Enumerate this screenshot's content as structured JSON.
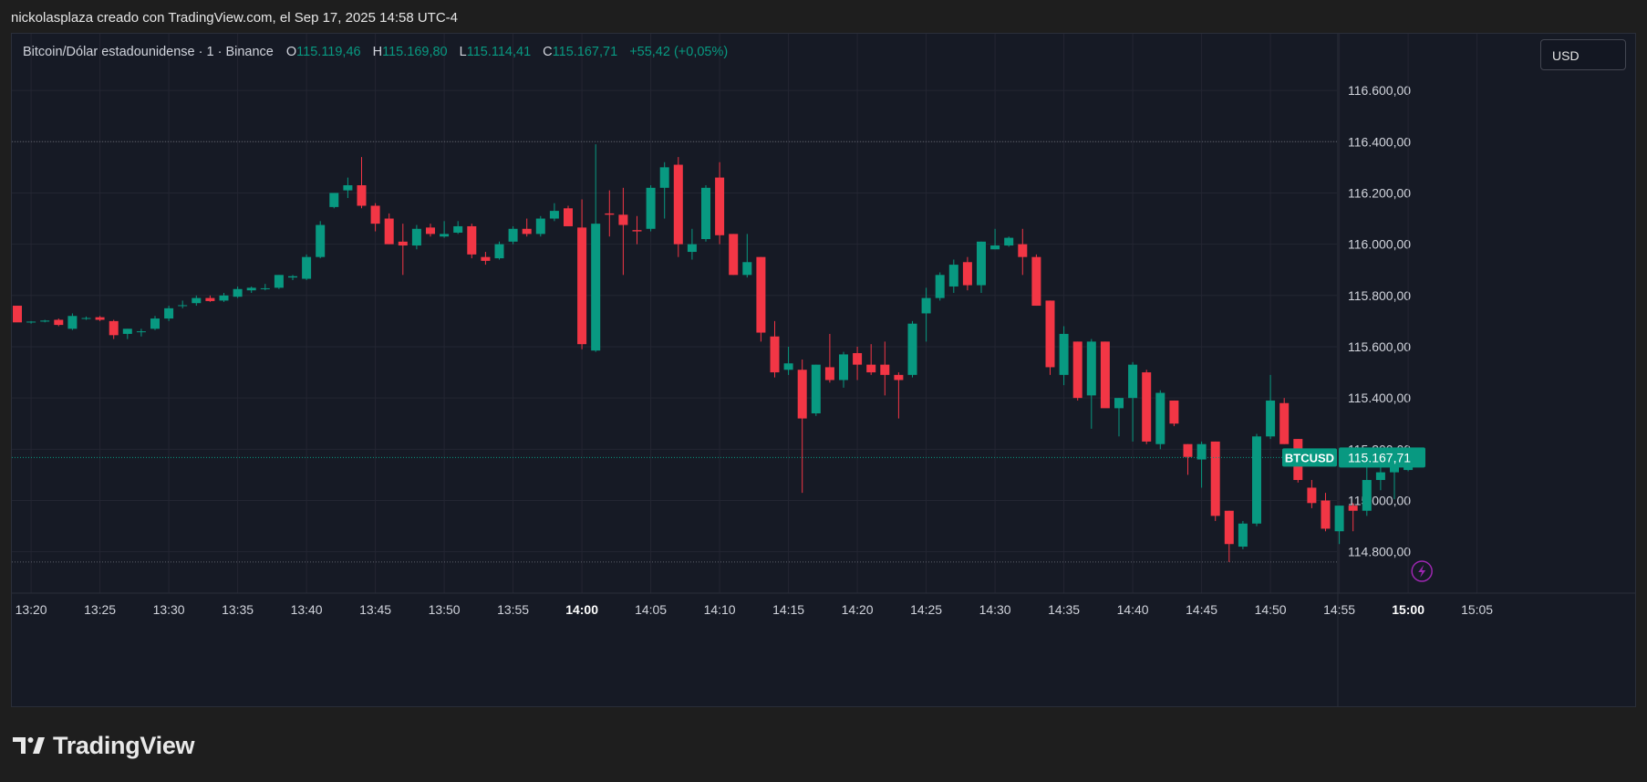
{
  "caption": "nickolasplaza creado con TradingView.com, el Sep 17, 2025 14:58 UTC-4",
  "legend": {
    "symbol": "Bitcoin/Dólar estadounidense · 1 · Binance",
    "open_label": "O",
    "open": "115.119,46",
    "high_label": "H",
    "high": "115.169,80",
    "low_label": "L",
    "low": "115.114,41",
    "close_label": "C",
    "close": "115.167,71",
    "change": "+55,42 (+0,05%)"
  },
  "currency_button": "USD",
  "brand": {
    "name": "TradingView",
    "logo_icon": "tradingview-logo-icon"
  },
  "colors": {
    "up": "#089981",
    "down": "#f23645",
    "background": "#161a25",
    "grid": "#232632",
    "axis_text": "#d1d4dc"
  },
  "chart_data": {
    "type": "candlestick",
    "title": "Bitcoin/Dólar estadounidense · 1 · Binance",
    "interval_minutes": 1,
    "x_tick_labels": [
      "13:20",
      "13:25",
      "13:30",
      "13:35",
      "13:40",
      "13:45",
      "13:50",
      "13:55",
      "14:00",
      "14:05",
      "14:10",
      "14:15",
      "14:20",
      "14:25",
      "14:30",
      "14:35",
      "14:40",
      "14:45",
      "14:50",
      "14:55",
      "15:00",
      "15:05"
    ],
    "x_bold_ticks": [
      "14:00",
      "15:00"
    ],
    "y_tick_labels": [
      "116.600,00",
      "116.400,00",
      "116.200,00",
      "116.000,00",
      "115.800,00",
      "115.600,00",
      "115.400,00",
      "115.200,00",
      "115.000,00",
      "114.800,00"
    ],
    "y_ticks": [
      116600,
      116400,
      116200,
      116000,
      115800,
      115600,
      115400,
      115200,
      115000,
      114800
    ],
    "ylim": [
      114660,
      116700
    ],
    "x_start_time": "13:20",
    "x_start_minutes": 1,
    "x_end_minutes": 110,
    "hlines": [
      116400,
      114760
    ],
    "last_price": {
      "label": "BTCUSD",
      "value": 115167.71,
      "text": "115.167,71"
    },
    "candles": [
      {
        "t": "13:19",
        "o": 115760,
        "h": 115760,
        "l": 115700,
        "c": 115695
      },
      {
        "t": "13:20",
        "o": 115695,
        "h": 115700,
        "l": 115690,
        "c": 115698
      },
      {
        "t": "13:21",
        "o": 115698,
        "h": 115705,
        "l": 115695,
        "c": 115702
      },
      {
        "t": "13:22",
        "o": 115705,
        "h": 115710,
        "l": 115680,
        "c": 115685
      },
      {
        "t": "13:23",
        "o": 115670,
        "h": 115730,
        "l": 115665,
        "c": 115720
      },
      {
        "t": "13:24",
        "o": 115710,
        "h": 115718,
        "l": 115705,
        "c": 115712
      },
      {
        "t": "13:25",
        "o": 115715,
        "h": 115720,
        "l": 115700,
        "c": 115705
      },
      {
        "t": "13:26",
        "o": 115700,
        "h": 115705,
        "l": 115630,
        "c": 115645
      },
      {
        "t": "13:27",
        "o": 115650,
        "h": 115670,
        "l": 115630,
        "c": 115670
      },
      {
        "t": "13:28",
        "o": 115660,
        "h": 115670,
        "l": 115640,
        "c": 115660
      },
      {
        "t": "13:29",
        "o": 115670,
        "h": 115720,
        "l": 115665,
        "c": 115710
      },
      {
        "t": "13:30",
        "o": 115710,
        "h": 115760,
        "l": 115700,
        "c": 115750
      },
      {
        "t": "13:31",
        "o": 115760,
        "h": 115780,
        "l": 115750,
        "c": 115762
      },
      {
        "t": "13:32",
        "o": 115770,
        "h": 115800,
        "l": 115760,
        "c": 115790
      },
      {
        "t": "13:33",
        "o": 115790,
        "h": 115800,
        "l": 115775,
        "c": 115778
      },
      {
        "t": "13:34",
        "o": 115780,
        "h": 115810,
        "l": 115775,
        "c": 115800
      },
      {
        "t": "13:35",
        "o": 115795,
        "h": 115835,
        "l": 115790,
        "c": 115825
      },
      {
        "t": "13:36",
        "o": 115820,
        "h": 115835,
        "l": 115810,
        "c": 115830
      },
      {
        "t": "13:37",
        "o": 115825,
        "h": 115845,
        "l": 115820,
        "c": 115828
      },
      {
        "t": "13:38",
        "o": 115830,
        "h": 115880,
        "l": 115825,
        "c": 115880
      },
      {
        "t": "13:39",
        "o": 115870,
        "h": 115880,
        "l": 115860,
        "c": 115875
      },
      {
        "t": "13:40",
        "o": 115865,
        "h": 115960,
        "l": 115860,
        "c": 115950
      },
      {
        "t": "13:41",
        "o": 115950,
        "h": 116090,
        "l": 115945,
        "c": 116075
      },
      {
        "t": "13:42",
        "o": 116145,
        "h": 116200,
        "l": 116140,
        "c": 116200
      },
      {
        "t": "13:43",
        "o": 116210,
        "h": 116260,
        "l": 116180,
        "c": 116230
      },
      {
        "t": "13:44",
        "o": 116230,
        "h": 116340,
        "l": 116140,
        "c": 116150
      },
      {
        "t": "13:45",
        "o": 116150,
        "h": 116160,
        "l": 116050,
        "c": 116080
      },
      {
        "t": "13:46",
        "o": 116100,
        "h": 116120,
        "l": 116000,
        "c": 116000
      },
      {
        "t": "13:47",
        "o": 116010,
        "h": 116080,
        "l": 115880,
        "c": 115995
      },
      {
        "t": "13:48",
        "o": 115995,
        "h": 116075,
        "l": 115980,
        "c": 116060
      },
      {
        "t": "13:49",
        "o": 116065,
        "h": 116080,
        "l": 116030,
        "c": 116040
      },
      {
        "t": "13:50",
        "o": 116030,
        "h": 116090,
        "l": 116025,
        "c": 116040
      },
      {
        "t": "13:51",
        "o": 116045,
        "h": 116090,
        "l": 116040,
        "c": 116070
      },
      {
        "t": "13:52",
        "o": 116070,
        "h": 116080,
        "l": 115945,
        "c": 115960
      },
      {
        "t": "13:53",
        "o": 115950,
        "h": 115970,
        "l": 115920,
        "c": 115935
      },
      {
        "t": "13:54",
        "o": 115945,
        "h": 116010,
        "l": 115940,
        "c": 116000
      },
      {
        "t": "13:55",
        "o": 116010,
        "h": 116070,
        "l": 116000,
        "c": 116060
      },
      {
        "t": "13:56",
        "o": 116060,
        "h": 116100,
        "l": 116030,
        "c": 116040
      },
      {
        "t": "13:57",
        "o": 116040,
        "h": 116110,
        "l": 116030,
        "c": 116100
      },
      {
        "t": "13:58",
        "o": 116100,
        "h": 116160,
        "l": 116090,
        "c": 116130
      },
      {
        "t": "13:59",
        "o": 116140,
        "h": 116150,
        "l": 116070,
        "c": 116070
      },
      {
        "t": "14:00",
        "o": 116065,
        "h": 116175,
        "l": 115590,
        "c": 115610
      },
      {
        "t": "14:01",
        "o": 115585,
        "h": 116390,
        "l": 115580,
        "c": 116080
      },
      {
        "t": "14:02",
        "o": 116120,
        "h": 116210,
        "l": 116030,
        "c": 116115
      },
      {
        "t": "14:03",
        "o": 116115,
        "h": 116220,
        "l": 115880,
        "c": 116075
      },
      {
        "t": "14:04",
        "o": 116055,
        "h": 116110,
        "l": 116000,
        "c": 116050
      },
      {
        "t": "14:05",
        "o": 116060,
        "h": 116230,
        "l": 116050,
        "c": 116220
      },
      {
        "t": "14:06",
        "o": 116220,
        "h": 116320,
        "l": 116100,
        "c": 116300
      },
      {
        "t": "14:07",
        "o": 116310,
        "h": 116340,
        "l": 115950,
        "c": 116000
      },
      {
        "t": "14:08",
        "o": 115970,
        "h": 116060,
        "l": 115940,
        "c": 116000
      },
      {
        "t": "14:09",
        "o": 116020,
        "h": 116230,
        "l": 116010,
        "c": 116220
      },
      {
        "t": "14:10",
        "o": 116260,
        "h": 116320,
        "l": 116000,
        "c": 116035
      },
      {
        "t": "14:11",
        "o": 116040,
        "h": 116040,
        "l": 115880,
        "c": 115880
      },
      {
        "t": "14:12",
        "o": 115880,
        "h": 116040,
        "l": 115870,
        "c": 115930
      },
      {
        "t": "14:13",
        "o": 115950,
        "h": 115950,
        "l": 115620,
        "c": 115655
      },
      {
        "t": "14:14",
        "o": 115640,
        "h": 115700,
        "l": 115480,
        "c": 115500
      },
      {
        "t": "14:15",
        "o": 115510,
        "h": 115600,
        "l": 115490,
        "c": 115535
      },
      {
        "t": "14:16",
        "o": 115510,
        "h": 115550,
        "l": 115030,
        "c": 115320
      },
      {
        "t": "14:17",
        "o": 115340,
        "h": 115530,
        "l": 115330,
        "c": 115530
      },
      {
        "t": "14:18",
        "o": 115520,
        "h": 115650,
        "l": 115460,
        "c": 115470
      },
      {
        "t": "14:19",
        "o": 115470,
        "h": 115580,
        "l": 115440,
        "c": 115570
      },
      {
        "t": "14:20",
        "o": 115575,
        "h": 115600,
        "l": 115470,
        "c": 115530
      },
      {
        "t": "14:21",
        "o": 115530,
        "h": 115610,
        "l": 115490,
        "c": 115500
      },
      {
        "t": "14:22",
        "o": 115530,
        "h": 115620,
        "l": 115410,
        "c": 115490
      },
      {
        "t": "14:23",
        "o": 115490,
        "h": 115500,
        "l": 115320,
        "c": 115470
      },
      {
        "t": "14:24",
        "o": 115490,
        "h": 115700,
        "l": 115480,
        "c": 115690
      },
      {
        "t": "14:25",
        "o": 115730,
        "h": 115830,
        "l": 115620,
        "c": 115790
      },
      {
        "t": "14:26",
        "o": 115790,
        "h": 115890,
        "l": 115780,
        "c": 115880
      },
      {
        "t": "14:27",
        "o": 115835,
        "h": 115940,
        "l": 115810,
        "c": 115920
      },
      {
        "t": "14:28",
        "o": 115930,
        "h": 115950,
        "l": 115820,
        "c": 115840
      },
      {
        "t": "14:29",
        "o": 115840,
        "h": 116010,
        "l": 115810,
        "c": 116010
      },
      {
        "t": "14:30",
        "o": 115980,
        "h": 116060,
        "l": 115980,
        "c": 115995
      },
      {
        "t": "14:31",
        "o": 115995,
        "h": 116030,
        "l": 115990,
        "c": 116025
      },
      {
        "t": "14:32",
        "o": 116000,
        "h": 116060,
        "l": 115880,
        "c": 115950
      },
      {
        "t": "14:33",
        "o": 115950,
        "h": 115960,
        "l": 115760,
        "c": 115760
      },
      {
        "t": "14:34",
        "o": 115780,
        "h": 115780,
        "l": 115490,
        "c": 115520
      },
      {
        "t": "14:35",
        "o": 115490,
        "h": 115680,
        "l": 115450,
        "c": 115650
      },
      {
        "t": "14:36",
        "o": 115620,
        "h": 115620,
        "l": 115390,
        "c": 115400
      },
      {
        "t": "14:37",
        "o": 115410,
        "h": 115630,
        "l": 115280,
        "c": 115620
      },
      {
        "t": "14:38",
        "o": 115620,
        "h": 115620,
        "l": 115370,
        "c": 115360
      },
      {
        "t": "14:39",
        "o": 115360,
        "h": 115400,
        "l": 115250,
        "c": 115400
      },
      {
        "t": "14:40",
        "o": 115400,
        "h": 115540,
        "l": 115230,
        "c": 115530
      },
      {
        "t": "14:41",
        "o": 115500,
        "h": 115510,
        "l": 115220,
        "c": 115230
      },
      {
        "t": "14:42",
        "o": 115220,
        "h": 115430,
        "l": 115200,
        "c": 115420
      },
      {
        "t": "14:43",
        "o": 115390,
        "h": 115390,
        "l": 115290,
        "c": 115300
      },
      {
        "t": "14:44",
        "o": 115220,
        "h": 115220,
        "l": 115100,
        "c": 115170
      },
      {
        "t": "14:45",
        "o": 115160,
        "h": 115230,
        "l": 115050,
        "c": 115220
      },
      {
        "t": "14:46",
        "o": 115230,
        "h": 115230,
        "l": 114920,
        "c": 114940
      },
      {
        "t": "14:47",
        "o": 114960,
        "h": 114960,
        "l": 114760,
        "c": 114830
      },
      {
        "t": "14:48",
        "o": 114820,
        "h": 114920,
        "l": 114810,
        "c": 114910
      },
      {
        "t": "14:49",
        "o": 114910,
        "h": 115260,
        "l": 114900,
        "c": 115250
      },
      {
        "t": "14:50",
        "o": 115250,
        "h": 115490,
        "l": 115240,
        "c": 115390
      },
      {
        "t": "14:51",
        "o": 115380,
        "h": 115400,
        "l": 115220,
        "c": 115220
      },
      {
        "t": "14:52",
        "o": 115240,
        "h": 115240,
        "l": 115070,
        "c": 115080
      },
      {
        "t": "14:53",
        "o": 115050,
        "h": 115080,
        "l": 114970,
        "c": 114990
      },
      {
        "t": "14:54",
        "o": 115000,
        "h": 115030,
        "l": 114880,
        "c": 114890
      },
      {
        "t": "14:55",
        "o": 114880,
        "h": 114980,
        "l": 114830,
        "c": 114980
      },
      {
        "t": "14:56",
        "o": 114980,
        "h": 114990,
        "l": 114880,
        "c": 114960
      },
      {
        "t": "14:57",
        "o": 114960,
        "h": 115180,
        "l": 114940,
        "c": 115080
      },
      {
        "t": "14:58",
        "o": 115080,
        "h": 115170,
        "l": 115040,
        "c": 115110
      },
      {
        "t": "14:59",
        "o": 115110,
        "h": 115180,
        "l": 115005,
        "c": 115130
      },
      {
        "t": "15:00",
        "o": 115119,
        "h": 115170,
        "l": 115114,
        "c": 115168
      }
    ]
  }
}
